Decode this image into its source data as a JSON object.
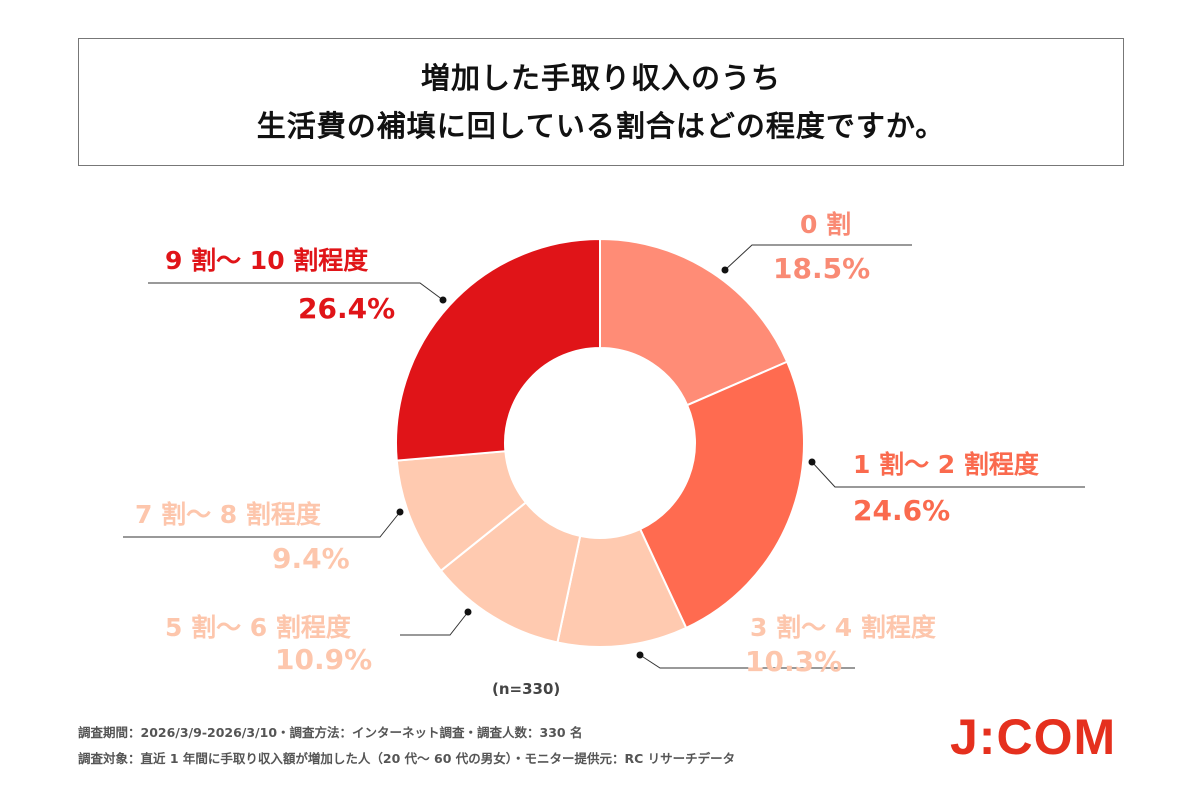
{
  "chart_data": {
    "type": "pie",
    "donut": true,
    "title": [
      "増加した手取り収入のうち",
      "生活費の補填に回している割合はどの程度ですか。"
    ],
    "note": "(n=330)",
    "slices": [
      {
        "label": "0 割",
        "value": 18.5,
        "display": "18.5%",
        "color": "#ff8c76",
        "text_color": "#f98a74"
      },
      {
        "label": "1 割～ 2 割程度",
        "value": 24.6,
        "display": "24.6%",
        "color": "#ff6b50",
        "text_color": "#fa6a4e"
      },
      {
        "label": "3 割～ 4 割程度",
        "value": 10.3,
        "display": "10.3%",
        "color": "#ffcab0",
        "text_color": "#fdc6ac"
      },
      {
        "label": "5 割～ 6 割程度",
        "value": 10.9,
        "display": "10.9%",
        "color": "#ffcab0",
        "text_color": "#fdc6ac"
      },
      {
        "label": "7 割～ 8 割程度",
        "value": 9.4,
        "display": "9.4%",
        "color": "#ffcab0",
        "text_color": "#fdc6ac"
      },
      {
        "label": "9 割～ 10 割程度",
        "value": 26.4,
        "display": "26.4%",
        "color": "#e01418",
        "text_color": "#e01418"
      }
    ]
  },
  "footer": [
    "調査期間：2026/3/9-2026/3/10・調査方法：インターネット調査・調査人数：330 名",
    "調査対象：直近 1 年間に手取り収入額が増加した人（20 代～ 60 代の男女）・モニター提供元：RC リサーチデータ"
  ],
  "logo": "J:COM"
}
